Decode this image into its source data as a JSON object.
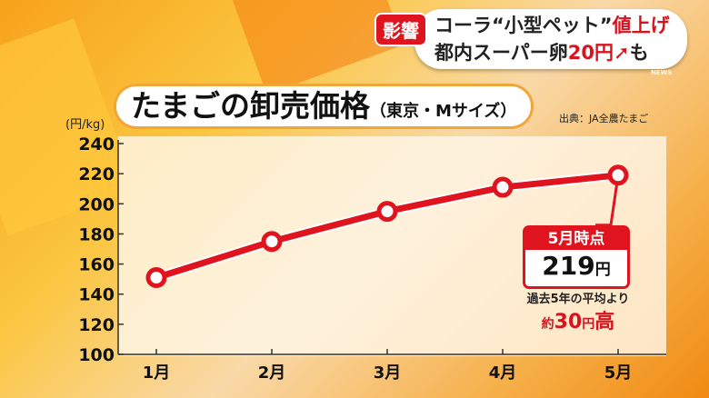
{
  "headline": {
    "tag": "影響",
    "line1_a": "コーラ“小型ペット”",
    "line1_b": "値上げ",
    "line2_a": "都内スーパー卵",
    "line2_b": "20円",
    "line2_arrow": "➚",
    "line2_c": "も",
    "logo": "NEWS"
  },
  "title": {
    "main": "たまごの卸売価格",
    "sub": "（東京・Mサイズ）",
    "source": "出典：JA全農たまご"
  },
  "callout": {
    "header": "5月時点",
    "value": "219",
    "value_unit": "円",
    "note": "過去5年の平均より",
    "diff_prefix": "約",
    "diff_value": "30",
    "diff_unit": "円",
    "diff_suffix": "高"
  },
  "colors": {
    "line": "#e0141e",
    "accent": "#f7a21b"
  },
  "chart_data": {
    "type": "line",
    "ylabel": "(円/kg)",
    "categories": [
      "1月",
      "2月",
      "3月",
      "4月",
      "5月"
    ],
    "series": [
      {
        "values": [
          151,
          175,
          195,
          211,
          219
        ]
      }
    ],
    "ylim": [
      100,
      240
    ],
    "yticks": [
      100,
      120,
      140,
      160,
      180,
      200,
      220,
      240
    ],
    "grid": false
  }
}
